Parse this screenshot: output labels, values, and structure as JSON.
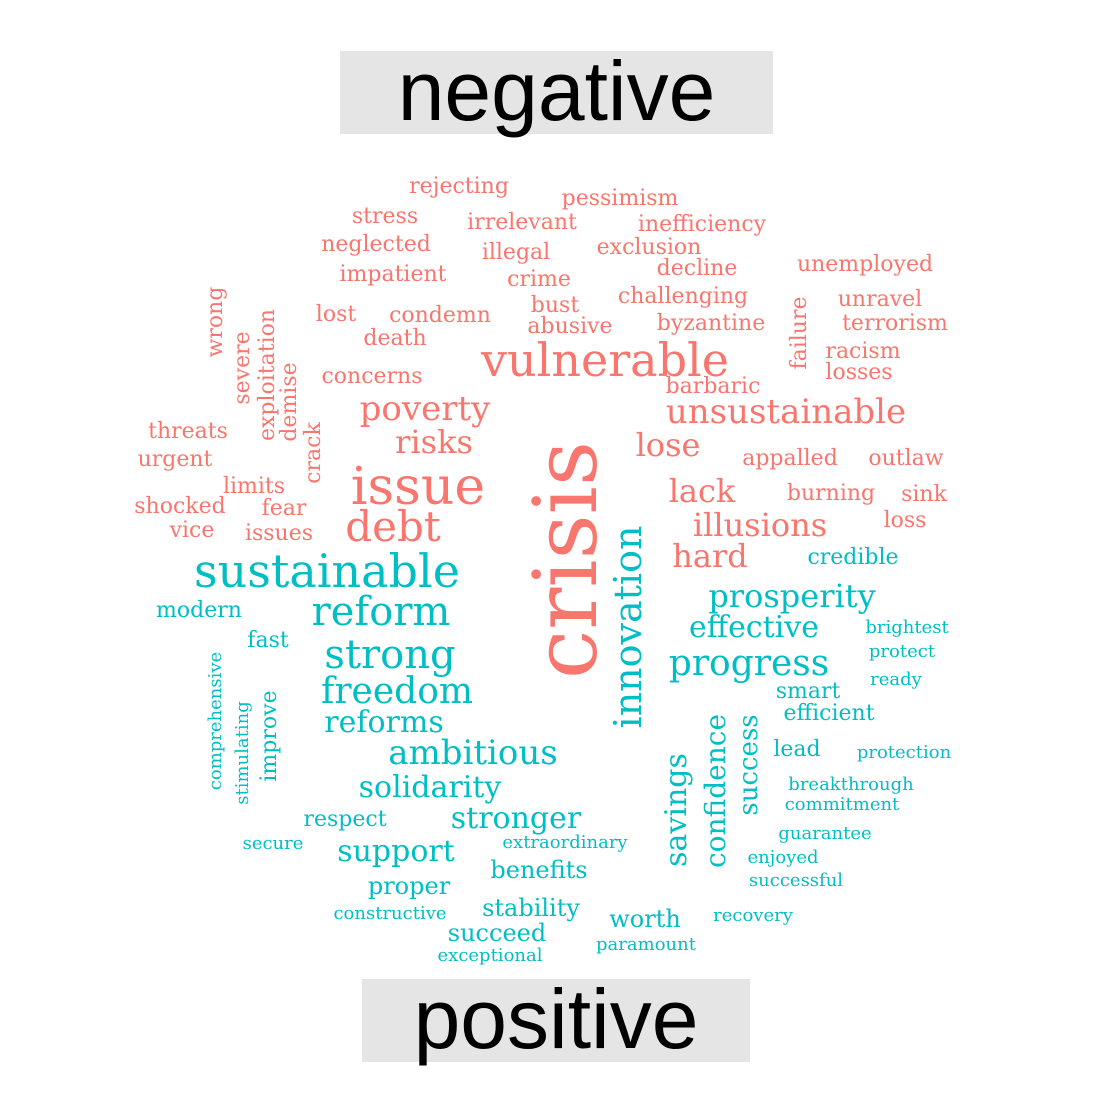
{
  "labels": {
    "negative": "negative",
    "positive": "positive"
  },
  "colors": {
    "negative": "#f8766d",
    "positive": "#00bfc4",
    "label_bg": "#e5e5e5"
  },
  "words": [
    {
      "text": "crisis",
      "sentiment": "negative"
    },
    {
      "text": "vulnerable",
      "sentiment": "negative"
    },
    {
      "text": "issue",
      "sentiment": "negative"
    },
    {
      "text": "unsustainable",
      "sentiment": "negative"
    },
    {
      "text": "poverty",
      "sentiment": "negative"
    },
    {
      "text": "debt",
      "sentiment": "negative"
    },
    {
      "text": "risks",
      "sentiment": "negative"
    },
    {
      "text": "lose",
      "sentiment": "negative"
    },
    {
      "text": "lack",
      "sentiment": "negative"
    },
    {
      "text": "illusions",
      "sentiment": "negative"
    },
    {
      "text": "hard",
      "sentiment": "negative"
    },
    {
      "text": "rejecting",
      "sentiment": "negative"
    },
    {
      "text": "pessimism",
      "sentiment": "negative"
    },
    {
      "text": "stress",
      "sentiment": "negative"
    },
    {
      "text": "irrelevant",
      "sentiment": "negative"
    },
    {
      "text": "inefficiency",
      "sentiment": "negative"
    },
    {
      "text": "neglected",
      "sentiment": "negative"
    },
    {
      "text": "illegal",
      "sentiment": "negative"
    },
    {
      "text": "exclusion",
      "sentiment": "negative"
    },
    {
      "text": "impatient",
      "sentiment": "negative"
    },
    {
      "text": "crime",
      "sentiment": "negative"
    },
    {
      "text": "decline",
      "sentiment": "negative"
    },
    {
      "text": "unemployed",
      "sentiment": "negative"
    },
    {
      "text": "wrong",
      "sentiment": "negative"
    },
    {
      "text": "exploitation",
      "sentiment": "negative"
    },
    {
      "text": "bust",
      "sentiment": "negative"
    },
    {
      "text": "challenging",
      "sentiment": "negative"
    },
    {
      "text": "unravel",
      "sentiment": "negative"
    },
    {
      "text": "lost",
      "sentiment": "negative"
    },
    {
      "text": "condemn",
      "sentiment": "negative"
    },
    {
      "text": "abusive",
      "sentiment": "negative"
    },
    {
      "text": "byzantine",
      "sentiment": "negative"
    },
    {
      "text": "failure",
      "sentiment": "negative"
    },
    {
      "text": "terrorism",
      "sentiment": "negative"
    },
    {
      "text": "severe",
      "sentiment": "negative"
    },
    {
      "text": "death",
      "sentiment": "negative"
    },
    {
      "text": "racism",
      "sentiment": "negative"
    },
    {
      "text": "demise",
      "sentiment": "negative"
    },
    {
      "text": "concerns",
      "sentiment": "negative"
    },
    {
      "text": "losses",
      "sentiment": "negative"
    },
    {
      "text": "barbaric",
      "sentiment": "negative"
    },
    {
      "text": "threats",
      "sentiment": "negative"
    },
    {
      "text": "crack",
      "sentiment": "negative"
    },
    {
      "text": "urgent",
      "sentiment": "negative"
    },
    {
      "text": "appalled",
      "sentiment": "negative"
    },
    {
      "text": "outlaw",
      "sentiment": "negative"
    },
    {
      "text": "limits",
      "sentiment": "negative"
    },
    {
      "text": "burning",
      "sentiment": "negative"
    },
    {
      "text": "sink",
      "sentiment": "negative"
    },
    {
      "text": "shocked",
      "sentiment": "negative"
    },
    {
      "text": "fear",
      "sentiment": "negative"
    },
    {
      "text": "loss",
      "sentiment": "negative"
    },
    {
      "text": "vice",
      "sentiment": "negative"
    },
    {
      "text": "issues",
      "sentiment": "negative"
    },
    {
      "text": "sustainable",
      "sentiment": "positive"
    },
    {
      "text": "innovation",
      "sentiment": "positive"
    },
    {
      "text": "reform",
      "sentiment": "positive"
    },
    {
      "text": "strong",
      "sentiment": "positive"
    },
    {
      "text": "freedom",
      "sentiment": "positive"
    },
    {
      "text": "progress",
      "sentiment": "positive"
    },
    {
      "text": "ambitious",
      "sentiment": "positive"
    },
    {
      "text": "prosperity",
      "sentiment": "positive"
    },
    {
      "text": "effective",
      "sentiment": "positive"
    },
    {
      "text": "reforms",
      "sentiment": "positive"
    },
    {
      "text": "savings",
      "sentiment": "positive"
    },
    {
      "text": "confidence",
      "sentiment": "positive"
    },
    {
      "text": "solidarity",
      "sentiment": "positive"
    },
    {
      "text": "stronger",
      "sentiment": "positive"
    },
    {
      "text": "success",
      "sentiment": "positive"
    },
    {
      "text": "support",
      "sentiment": "positive"
    },
    {
      "text": "credible",
      "sentiment": "positive"
    },
    {
      "text": "modern",
      "sentiment": "positive"
    },
    {
      "text": "fast",
      "sentiment": "positive"
    },
    {
      "text": "brightest",
      "sentiment": "positive"
    },
    {
      "text": "protect",
      "sentiment": "positive"
    },
    {
      "text": "comprehensive",
      "sentiment": "positive"
    },
    {
      "text": "smart",
      "sentiment": "positive"
    },
    {
      "text": "ready",
      "sentiment": "positive"
    },
    {
      "text": "improve",
      "sentiment": "positive"
    },
    {
      "text": "stimulating",
      "sentiment": "positive"
    },
    {
      "text": "efficient",
      "sentiment": "positive"
    },
    {
      "text": "lead",
      "sentiment": "positive"
    },
    {
      "text": "protection",
      "sentiment": "positive"
    },
    {
      "text": "breakthrough",
      "sentiment": "positive"
    },
    {
      "text": "commitment",
      "sentiment": "positive"
    },
    {
      "text": "respect",
      "sentiment": "positive"
    },
    {
      "text": "guarantee",
      "sentiment": "positive"
    },
    {
      "text": "secure",
      "sentiment": "positive"
    },
    {
      "text": "extraordinary",
      "sentiment": "positive"
    },
    {
      "text": "enjoyed",
      "sentiment": "positive"
    },
    {
      "text": "benefits",
      "sentiment": "positive"
    },
    {
      "text": "successful",
      "sentiment": "positive"
    },
    {
      "text": "proper",
      "sentiment": "positive"
    },
    {
      "text": "constructive",
      "sentiment": "positive"
    },
    {
      "text": "stability",
      "sentiment": "positive"
    },
    {
      "text": "worth",
      "sentiment": "positive"
    },
    {
      "text": "recovery",
      "sentiment": "positive"
    },
    {
      "text": "succeed",
      "sentiment": "positive"
    },
    {
      "text": "paramount",
      "sentiment": "positive"
    },
    {
      "text": "exceptional",
      "sentiment": "positive"
    }
  ]
}
